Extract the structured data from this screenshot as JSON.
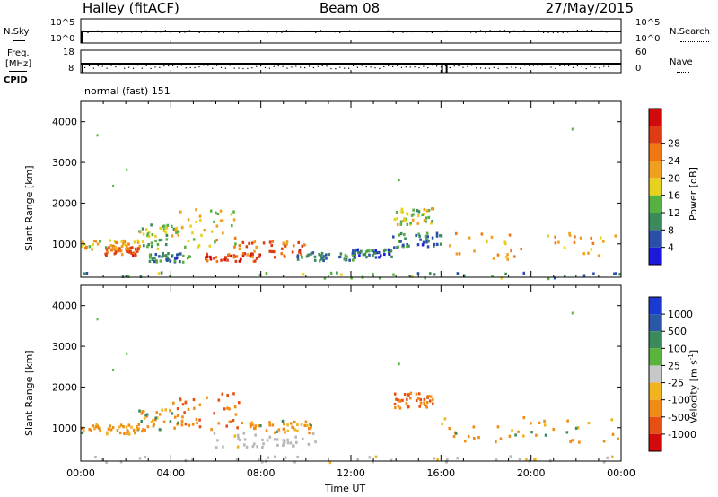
{
  "header": {
    "station": "Halley (fitACF)",
    "beam": "Beam 08",
    "date": "27/May/2015"
  },
  "top_panels": {
    "nsky_label": "N.Sky",
    "nsearch_label": "N.Search",
    "noise_ticks_left": [
      "10^5",
      "10^0"
    ],
    "noise_ticks_right": [
      "10^5",
      "10^0"
    ],
    "freq_label": "Freq.",
    "freq_unit": "[MHz]",
    "freq_ticks": [
      "18",
      "8"
    ],
    "nave_label": "Nave",
    "nave_ticks": [
      "60",
      "0"
    ],
    "cpid_label": "CPID",
    "cpid_text": "normal (fast) 151"
  },
  "colors": {
    "power_scale": [
      "#1a1adc",
      "#2a4fa8",
      "#3c8a5c",
      "#58b040",
      "#e6d21e",
      "#f0a01e",
      "#f07814",
      "#e03c14",
      "#d20a0a"
    ],
    "velocity_scale": [
      "#1a3ad2",
      "#2a58a8",
      "#3c8a5c",
      "#5ab43c",
      "#c8c8c8",
      "#f0b41e",
      "#f08c14",
      "#e65014",
      "#d20a0a"
    ],
    "ground_scatter": "#b8b8b8"
  },
  "chart_data": [
    {
      "type": "heatmap",
      "title": "",
      "xlabel": "",
      "ylabel": "Slant Range [km]",
      "x_range_hours": [
        0,
        24
      ],
      "ylim": [
        180,
        4500
      ],
      "yticks": [
        "1000",
        "2000",
        "3000",
        "4000"
      ],
      "xticks": [
        "00:00",
        "04:00",
        "08:00",
        "12:00",
        "16:00",
        "20:00",
        "00:00"
      ],
      "colorbar": {
        "label": "Power [dB]",
        "range": [
          0,
          30
        ],
        "ticks": [
          "4",
          "8",
          "12",
          "16",
          "20",
          "24",
          "28"
        ]
      },
      "regions": [
        {
          "t": [
            0,
            2.6
          ],
          "r": [
            870,
            1120
          ],
          "value": 18
        },
        {
          "t": [
            1.0,
            2.6
          ],
          "r": [
            750,
            950
          ],
          "value": 22
        },
        {
          "t": [
            2.5,
            4.5
          ],
          "r": [
            900,
            1500
          ],
          "value": 12
        },
        {
          "t": [
            3.0,
            4.8
          ],
          "r": [
            580,
            800
          ],
          "value": 8
        },
        {
          "t": [
            4.0,
            7.0
          ],
          "r": [
            950,
            1900
          ],
          "value": 16
        },
        {
          "t": [
            5.5,
            8.0
          ],
          "r": [
            600,
            800
          ],
          "value": 26
        },
        {
          "t": [
            7.0,
            10.2
          ],
          "r": [
            700,
            1100
          ],
          "value": 22
        },
        {
          "t": [
            9.5,
            12.2
          ],
          "r": [
            600,
            820
          ],
          "value": 8
        },
        {
          "t": [
            12.0,
            13.8
          ],
          "r": [
            700,
            900
          ],
          "value": 6
        },
        {
          "t": [
            13.9,
            15.6
          ],
          "r": [
            1500,
            1900
          ],
          "value": 14
        },
        {
          "t": [
            13.8,
            16.0
          ],
          "r": [
            900,
            1300
          ],
          "value": 8
        },
        {
          "t": [
            16.0,
            24.0
          ],
          "r": [
            650,
            1300
          ],
          "value": 18
        },
        {
          "t": [
            0,
            24.0
          ],
          "r": [
            180,
            330
          ],
          "value": 10
        }
      ]
    },
    {
      "type": "heatmap",
      "title": "",
      "xlabel": "Time UT",
      "ylabel": "Slant Range [km]",
      "x_range_hours": [
        0,
        24
      ],
      "ylim": [
        180,
        4500
      ],
      "yticks": [
        "1000",
        "2000",
        "3000",
        "4000"
      ],
      "xticks": [
        "00:00",
        "04:00",
        "08:00",
        "12:00",
        "16:00",
        "20:00",
        "00:00"
      ],
      "colorbar": {
        "label": "Velocity [m s",
        "label_sup": "-1",
        "label_end": "]",
        "ticks": [
          "1000",
          "500",
          "100",
          "25",
          "-25",
          "-100",
          "-500",
          "-1000"
        ]
      },
      "regions": [
        {
          "t": [
            0,
            2.6
          ],
          "r": [
            870,
            1120
          ],
          "value": -100
        },
        {
          "t": [
            2.5,
            4.5
          ],
          "r": [
            900,
            1500
          ],
          "value": -100
        },
        {
          "t": [
            4.0,
            7.0
          ],
          "r": [
            950,
            1900
          ],
          "value": -300
        },
        {
          "t": [
            5.5,
            10.5
          ],
          "r": [
            550,
            900
          ],
          "value": 0
        },
        {
          "t": [
            7.0,
            10.2
          ],
          "r": [
            900,
            1200
          ],
          "value": -100
        },
        {
          "t": [
            13.9,
            15.6
          ],
          "r": [
            1500,
            1900
          ],
          "value": -300
        },
        {
          "t": [
            16.0,
            24.0
          ],
          "r": [
            650,
            1300
          ],
          "value": -100
        },
        {
          "t": [
            0,
            24.0
          ],
          "r": [
            180,
            330
          ],
          "value": 0
        }
      ]
    }
  ]
}
